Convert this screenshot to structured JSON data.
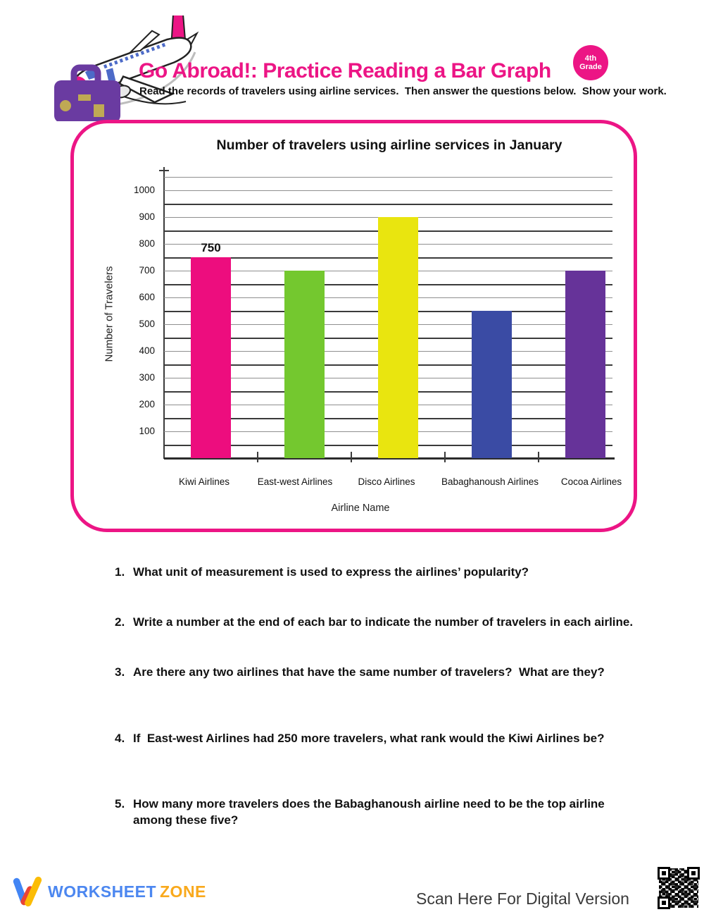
{
  "header": {
    "title": "Go Abroad!: Practice Reading a Bar Graph",
    "title_color": "#EC1585",
    "subtitle": "Read the records of travelers using airline services.  Then answer the questions below.  Show your work.",
    "grade_badge": {
      "line1": "4th",
      "line2": "Grade",
      "color": "#EC1585"
    },
    "logo_icons": [
      "airplane-icon",
      "suitcase-icon"
    ]
  },
  "chart_data": {
    "type": "bar",
    "title": "Number of travelers using airline services in January",
    "xlabel": "Airline Name",
    "ylabel": "Number of Travelers",
    "categories": [
      "Kiwi Airlines",
      "East-west Airlines",
      "Disco Airlines",
      "Babaghanoush Airlines",
      "Cocoa Airlines"
    ],
    "values": [
      750,
      700,
      900,
      550,
      700
    ],
    "bar_colors": [
      "#ED0D7E",
      "#74C82F",
      "#E9E50F",
      "#3A4BA4",
      "#663399"
    ],
    "value_labels": [
      "750",
      "",
      "",
      "",
      ""
    ],
    "ylim": [
      0,
      1050
    ],
    "yticks": [
      100,
      200,
      300,
      400,
      500,
      600,
      700,
      800,
      900,
      1000
    ],
    "minor_gridline_step": 50,
    "grid": true,
    "legend": false,
    "frame_color": "#EC1585"
  },
  "questions": [
    {
      "num": "1.",
      "text": "What unit of measurement is used to express the airlines’ popularity?"
    },
    {
      "num": "2.",
      "text": "Write a number at the end of each bar to indicate the number of travelers in each airline."
    },
    {
      "num": "3.",
      "text": "Are there any two airlines that have the same number of travelers?  What are they?"
    },
    {
      "num": "4.",
      "text": "If  East-west Airlines had 250 more travelers, what rank would the Kiwi Airlines be?"
    },
    {
      "num": "5.",
      "text": "How many more travelers does the Babaghanoush airline need to be the top airline among these five?"
    }
  ],
  "footer": {
    "brand_word1": "WORKSHEET",
    "brand_word2": "ZONE",
    "brand_word1_color": "#4C87F0",
    "brand_word2_color": "#F9A91C",
    "scan_text": "Scan Here For Digital Version",
    "qr_icon": "qr-code-icon"
  }
}
